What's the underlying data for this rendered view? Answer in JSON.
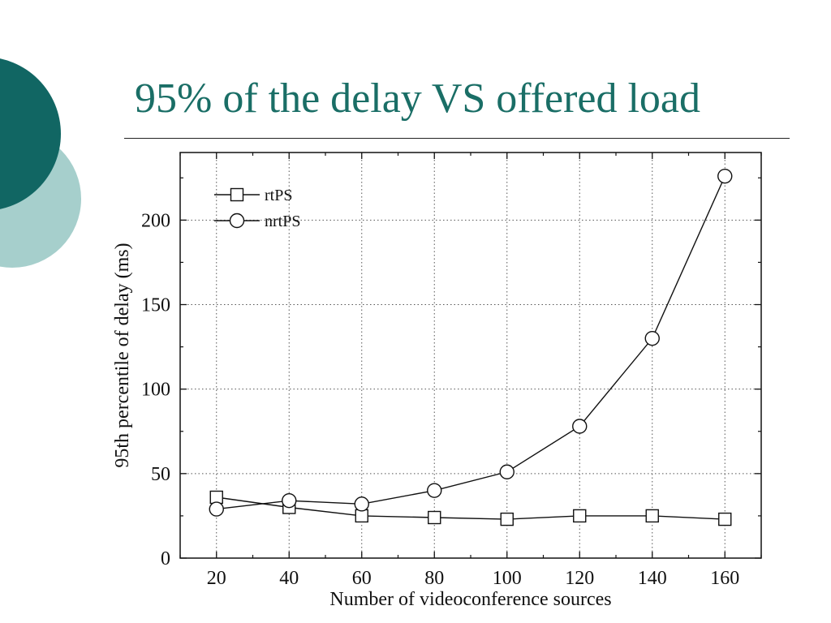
{
  "slide": {
    "title": "95% of the delay VS offered load",
    "colors": {
      "title": "#1a6e66",
      "circle_dark": "#116663",
      "circle_light": "#a6cfcc"
    }
  },
  "chart_data": {
    "type": "line",
    "title": "",
    "xlabel": "Number of videoconference sources",
    "ylabel": "95th percentile of delay (ms)",
    "x": [
      20,
      40,
      60,
      80,
      100,
      120,
      140,
      160
    ],
    "xticks": [
      20,
      40,
      60,
      80,
      100,
      120,
      140,
      160
    ],
    "yticks": [
      0,
      50,
      100,
      150,
      200
    ],
    "xlim": [
      10,
      170
    ],
    "ylim": [
      0,
      240
    ],
    "grid": true,
    "legend_position": "top-left",
    "series": [
      {
        "name": "rtPS",
        "marker": "square",
        "values": [
          36,
          30,
          25,
          24,
          23,
          25,
          25,
          23
        ]
      },
      {
        "name": "nrtPS",
        "marker": "circle",
        "values": [
          29,
          34,
          32,
          40,
          51,
          78,
          130,
          226
        ]
      }
    ]
  }
}
